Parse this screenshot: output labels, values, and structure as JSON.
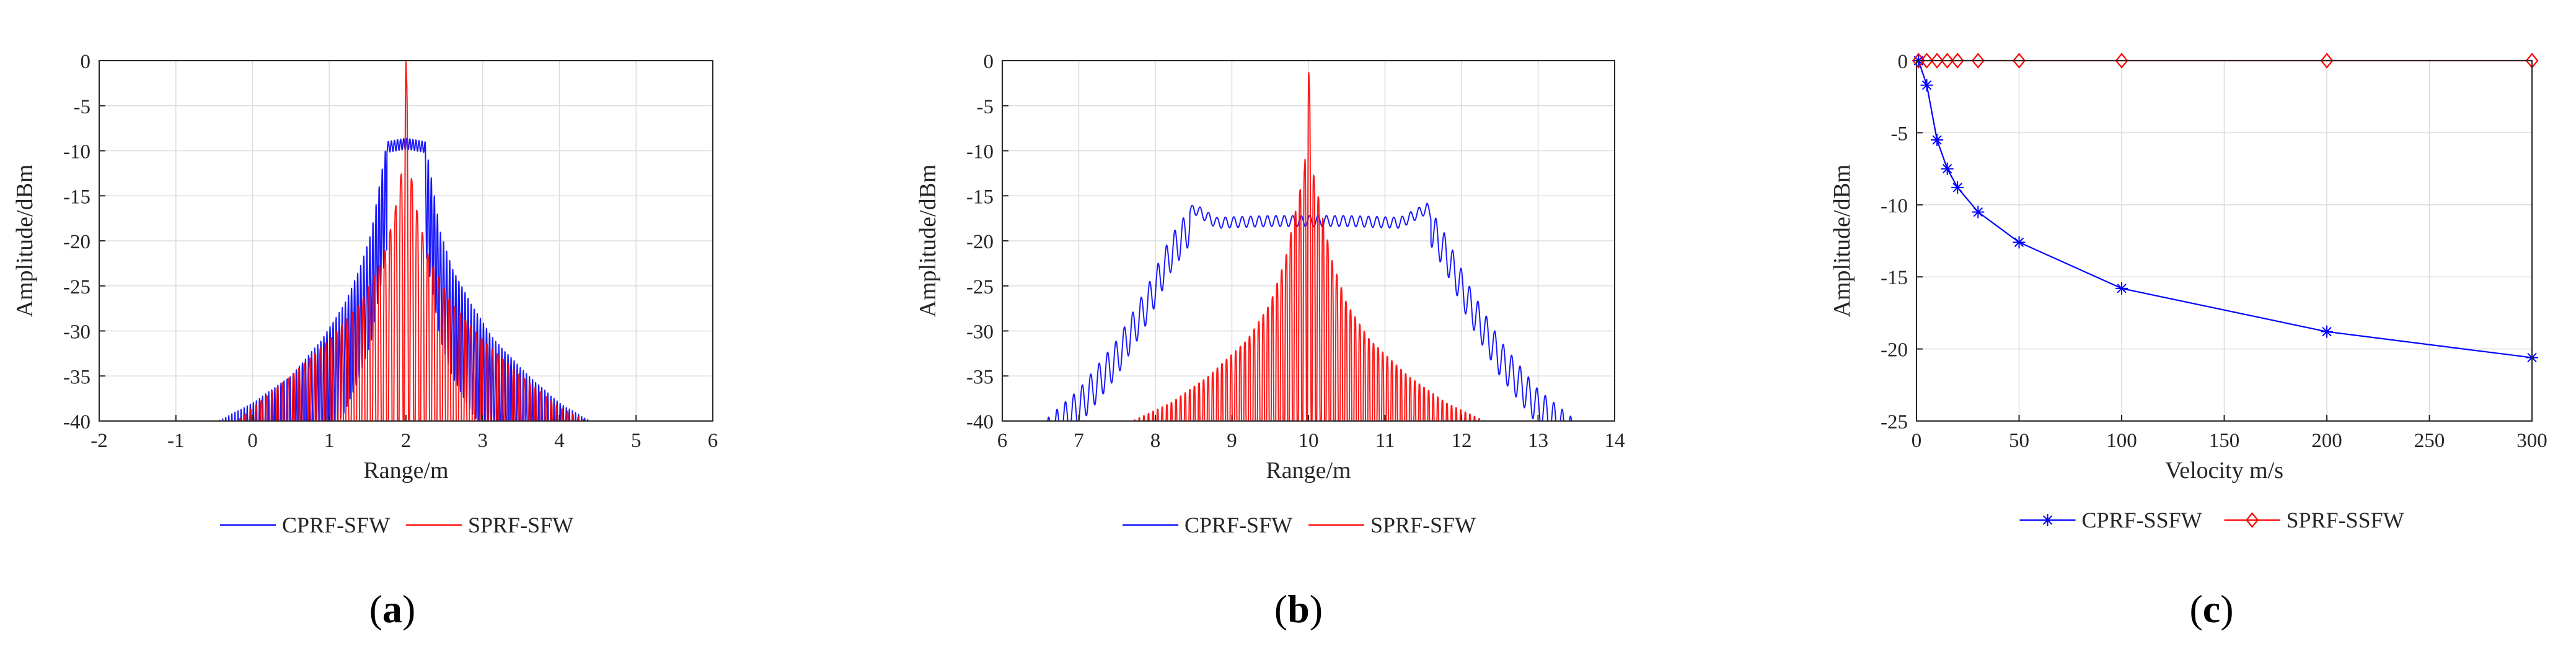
{
  "figure": {
    "panels": [
      "a",
      "b",
      "c"
    ]
  },
  "chart_data": [
    {
      "id": "a",
      "panel_label": {
        "open": "(",
        "letter": "a",
        "close": ")"
      },
      "type": "line",
      "title": "",
      "xlabel": "Range/m",
      "ylabel": "Amplitude/dBm",
      "xlim": [
        -2,
        6
      ],
      "ylim": [
        -40,
        0
      ],
      "xticks": [
        -2,
        -1,
        0,
        1,
        2,
        3,
        4,
        5,
        6
      ],
      "yticks": [
        0,
        -5,
        -10,
        -15,
        -20,
        -25,
        -30,
        -35,
        -40
      ],
      "grid": true,
      "legend": {
        "position": "bottom",
        "entries": [
          "CPRF-SFW",
          "SPRF-SFW"
        ]
      },
      "series": [
        {
          "name": "CPRF-SFW",
          "color": "#0000ff",
          "style": "oscillating",
          "range": [
            -0.45,
            4.4
          ],
          "period": 0.04,
          "depth": 12,
          "envelope": [
            [
              -0.45,
              -40
            ],
            [
              0,
              -38
            ],
            [
              0.5,
              -35
            ],
            [
              0.9,
              -31
            ],
            [
              1.2,
              -27
            ],
            [
              1.4,
              -23
            ],
            [
              1.55,
              -19
            ],
            [
              1.65,
              -14
            ],
            [
              1.75,
              -9
            ],
            [
              2.0,
              -8.6
            ],
            [
              2.25,
              -9
            ],
            [
              2.35,
              -14
            ],
            [
              2.45,
              -19
            ],
            [
              2.6,
              -23
            ],
            [
              2.85,
              -27
            ],
            [
              3.15,
              -31
            ],
            [
              3.6,
              -35
            ],
            [
              4.0,
              -38
            ],
            [
              4.4,
              -40
            ]
          ],
          "flat": [
            [
              1.75,
              2.25
            ]
          ]
        },
        {
          "name": "SPRF-SFW",
          "color": "#ff0000",
          "style": "sinc",
          "range": [
            -0.2,
            4.35
          ],
          "period": 0.07,
          "depth": 40,
          "envelope": [
            [
              -0.2,
              -40
            ],
            [
              0,
              -38.5
            ],
            [
              0.5,
              -35
            ],
            [
              1.0,
              -31
            ],
            [
              1.4,
              -27
            ],
            [
              1.7,
              -22
            ],
            [
              1.85,
              -17
            ],
            [
              1.95,
              -12
            ],
            [
              2.0,
              0
            ],
            [
              2.05,
              -12
            ],
            [
              2.15,
              -17
            ],
            [
              2.3,
              -22
            ],
            [
              2.6,
              -27
            ],
            [
              3.0,
              -31
            ],
            [
              3.5,
              -35
            ],
            [
              4.0,
              -38.5
            ],
            [
              4.35,
              -40
            ]
          ]
        }
      ]
    },
    {
      "id": "b",
      "panel_label": {
        "open": "(",
        "letter": "b",
        "close": ")"
      },
      "type": "line",
      "title": "",
      "xlabel": "Range/m",
      "ylabel": "Amplitude/dBm",
      "xlim": [
        6,
        14
      ],
      "ylim": [
        -40,
        0
      ],
      "xticks": [
        6,
        7,
        8,
        9,
        10,
        11,
        12,
        13,
        14
      ],
      "yticks": [
        0,
        -5,
        -10,
        -15,
        -20,
        -25,
        -30,
        -35,
        -40
      ],
      "grid": true,
      "legend": {
        "position": "bottom",
        "entries": [
          "CPRF-SFW",
          "SPRF-SFW"
        ]
      },
      "series": [
        {
          "name": "CPRF-SFW",
          "color": "#0000ff",
          "style": "oscillating",
          "range": [
            6.55,
            13.5
          ],
          "period": 0.11,
          "depth": 4,
          "envelope": [
            [
              6.55,
              -40
            ],
            [
              7.0,
              -36.5
            ],
            [
              7.5,
              -31
            ],
            [
              7.9,
              -25
            ],
            [
              8.2,
              -19.5
            ],
            [
              8.5,
              -15.8
            ],
            [
              8.8,
              -17.4
            ],
            [
              9.5,
              -17.2
            ],
            [
              10.0,
              -17.2
            ],
            [
              10.5,
              -17.2
            ],
            [
              11.2,
              -17.4
            ],
            [
              11.55,
              -15.8
            ],
            [
              11.8,
              -19.5
            ],
            [
              12.1,
              -25
            ],
            [
              12.5,
              -31
            ],
            [
              13.0,
              -36.5
            ],
            [
              13.5,
              -40
            ]
          ],
          "flat": [
            [
              8.45,
              11.6
            ]
          ]
        },
        {
          "name": "SPRF-SFW",
          "color": "#ff0000",
          "style": "sinc",
          "range": [
            7.7,
            12.3
          ],
          "period": 0.06,
          "depth": 40,
          "envelope": [
            [
              7.7,
              -40
            ],
            [
              8.2,
              -38
            ],
            [
              8.7,
              -35
            ],
            [
              9.2,
              -31
            ],
            [
              9.5,
              -27
            ],
            [
              9.7,
              -22
            ],
            [
              9.85,
              -16
            ],
            [
              9.95,
              -12
            ],
            [
              10.0,
              0
            ],
            [
              10.05,
              -12
            ],
            [
              10.15,
              -16
            ],
            [
              10.3,
              -22
            ],
            [
              10.5,
              -27
            ],
            [
              10.8,
              -31
            ],
            [
              11.3,
              -35
            ],
            [
              11.8,
              -38
            ],
            [
              12.3,
              -40
            ]
          ]
        }
      ]
    },
    {
      "id": "c",
      "panel_label": {
        "open": "(",
        "letter": "c",
        "close": ")"
      },
      "type": "line",
      "title": "",
      "xlabel": "Velocity m/s",
      "ylabel": "Amplitude/dBm",
      "xlim": [
        0,
        300
      ],
      "ylim": [
        -25,
        0
      ],
      "xticks": [
        0,
        50,
        100,
        150,
        200,
        250,
        300
      ],
      "yticks": [
        0,
        -5,
        -10,
        -15,
        -20,
        -25
      ],
      "grid": true,
      "legend": {
        "position": "bottom",
        "entries": [
          "CPRF-SSFW",
          "SPRF-SSFW"
        ]
      },
      "series": [
        {
          "name": "CPRF-SSFW",
          "color": "#0000ff",
          "marker": "*",
          "x": [
            1,
            5,
            10,
            15,
            20,
            30,
            50,
            100,
            200,
            300
          ],
          "y": [
            0,
            -1.7,
            -5.5,
            -7.5,
            -8.8,
            -10.5,
            -12.6,
            -15.8,
            -18.8,
            -20.6
          ]
        },
        {
          "name": "SPRF-SSFW",
          "color": "#ff0000",
          "marker": "diamond",
          "x": [
            1,
            5,
            10,
            15,
            20,
            30,
            50,
            100,
            200,
            300
          ],
          "y": [
            0,
            0,
            0,
            0,
            0,
            0,
            0,
            0,
            0,
            0
          ]
        }
      ]
    }
  ]
}
